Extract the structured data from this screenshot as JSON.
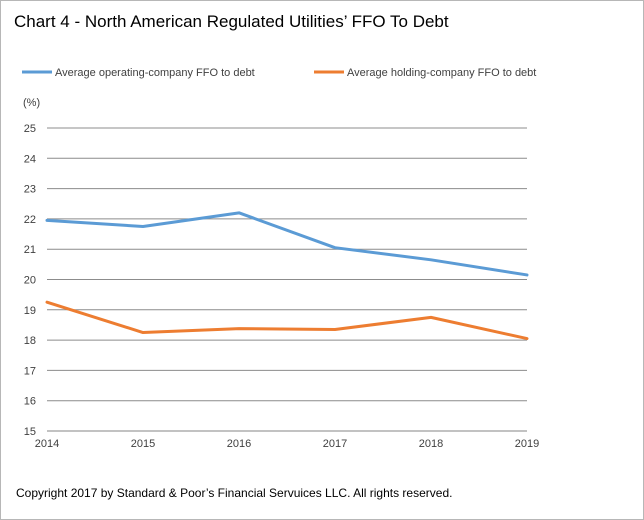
{
  "chart_data": {
    "type": "line",
    "title": "Chart 4 - North American Regulated Utilities’ FFO To Debt",
    "ylabel": "(%)",
    "x": [
      "2014",
      "2015",
      "2016",
      "2017",
      "2018",
      "2019"
    ],
    "ylim": [
      15,
      25
    ],
    "yticks": [
      "15",
      "16",
      "17",
      "18",
      "19",
      "20",
      "21",
      "22",
      "23",
      "24",
      "25"
    ],
    "grid": true,
    "legend_position": "top",
    "series": [
      {
        "name": "Average operating-company FFO to debt",
        "color": "#5b9bd5",
        "values": [
          21.95,
          21.75,
          22.2,
          21.05,
          20.65,
          20.15
        ]
      },
      {
        "name": "Average holding-company FFO to debt",
        "color": "#ed7d31",
        "values": [
          19.25,
          18.25,
          18.38,
          18.35,
          18.75,
          18.05
        ]
      }
    ]
  },
  "footer": "Copyright 2017 by Standard & Poor’s Financial Servuices LLC. All rights reserved."
}
